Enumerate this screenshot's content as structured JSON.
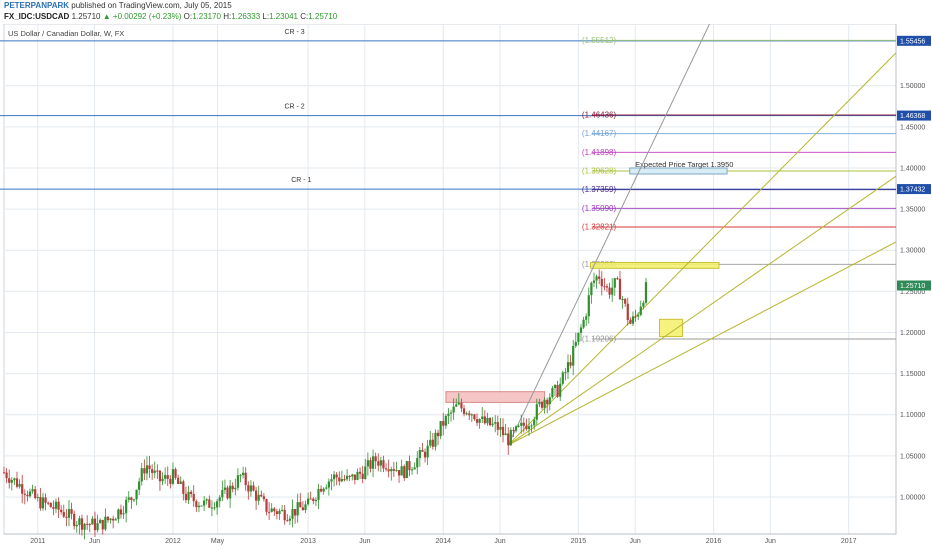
{
  "header": {
    "author": "PETERPANPARK",
    "published": "published on TradingView.com, July 05, 2015",
    "symbol": "FX_IDC:USDCAD",
    "last": "1.25710",
    "change": "+0.00292 (+0.23%)",
    "open": "1.23170",
    "high": "1.26333",
    "low": "1.23041",
    "close": "1.25710",
    "o_label": "O:",
    "h_label": "H:",
    "l_label": "L:",
    "c_label": "C:"
  },
  "colors": {
    "grid": "#e3e9ee",
    "axis_text": "#555555",
    "candle_up": "#2f8f2f",
    "candle_down": "#b83a3a",
    "cr_line": "#3a74c4",
    "fan_line": "#b5b52e",
    "steep_line": "#888888"
  },
  "chart_data": {
    "type": "candlestick",
    "title": "US Dollar / Canadian Dollar, W, FX",
    "ylim": [
      0.955,
      1.575
    ],
    "x_start": 2010.75,
    "x_end": 2017.35,
    "y_ticks": [
      "1.00000",
      "1.05000",
      "1.10000",
      "1.15000",
      "1.20000",
      "1.25000",
      "1.30000",
      "1.35000",
      "1.40000",
      "1.45000",
      "1.50000"
    ],
    "y_tick_values": [
      1.0,
      1.05,
      1.1,
      1.15,
      1.2,
      1.25,
      1.3,
      1.35,
      1.4,
      1.45,
      1.5
    ],
    "x_ticks": [
      {
        "label": "2011",
        "t": 2011.0
      },
      {
        "label": "Jun",
        "t": 2011.42
      },
      {
        "label": "2012",
        "t": 2012.0
      },
      {
        "label": "May",
        "t": 2012.33
      },
      {
        "label": "2013",
        "t": 2013.0
      },
      {
        "label": "Jun",
        "t": 2013.42
      },
      {
        "label": "2014",
        "t": 2014.0
      },
      {
        "label": "Jun",
        "t": 2014.42
      },
      {
        "label": "2015",
        "t": 2015.0
      },
      {
        "label": "Jun",
        "t": 2015.42
      },
      {
        "label": "2016",
        "t": 2016.0
      },
      {
        "label": "Jun",
        "t": 2016.42
      },
      {
        "label": "2017",
        "t": 2017.0
      }
    ],
    "price_path": [
      [
        2010.75,
        1.03
      ],
      [
        2010.9,
        1.01
      ],
      [
        2011.0,
        0.995
      ],
      [
        2011.15,
        0.985
      ],
      [
        2011.3,
        0.97
      ],
      [
        2011.45,
        0.965
      ],
      [
        2011.55,
        0.975
      ],
      [
        2011.7,
        1.0
      ],
      [
        2011.8,
        1.04
      ],
      [
        2011.9,
        1.02
      ],
      [
        2012.0,
        1.025
      ],
      [
        2012.1,
        1.0
      ],
      [
        2012.25,
        0.99
      ],
      [
        2012.4,
        1.005
      ],
      [
        2012.5,
        1.025
      ],
      [
        2012.6,
        1.005
      ],
      [
        2012.7,
        0.985
      ],
      [
        2012.85,
        0.98
      ],
      [
        2013.0,
        0.99
      ],
      [
        2013.1,
        1.015
      ],
      [
        2013.2,
        1.025
      ],
      [
        2013.3,
        1.02
      ],
      [
        2013.4,
        1.03
      ],
      [
        2013.5,
        1.045
      ],
      [
        2013.6,
        1.04
      ],
      [
        2013.7,
        1.03
      ],
      [
        2013.8,
        1.045
      ],
      [
        2013.9,
        1.06
      ],
      [
        2014.0,
        1.09
      ],
      [
        2014.1,
        1.11
      ],
      [
        2014.2,
        1.105
      ],
      [
        2014.3,
        1.09
      ],
      [
        2014.4,
        1.085
      ],
      [
        2014.48,
        1.07
      ],
      [
        2014.55,
        1.08
      ],
      [
        2014.65,
        1.095
      ],
      [
        2014.75,
        1.12
      ],
      [
        2014.85,
        1.13
      ],
      [
        2014.95,
        1.17
      ],
      [
        2015.05,
        1.22
      ],
      [
        2015.1,
        1.26
      ],
      [
        2015.15,
        1.27
      ],
      [
        2015.22,
        1.25
      ],
      [
        2015.28,
        1.26
      ],
      [
        2015.33,
        1.24
      ],
      [
        2015.38,
        1.21
      ],
      [
        2015.43,
        1.22
      ],
      [
        2015.47,
        1.24
      ],
      [
        2015.51,
        1.2571
      ]
    ],
    "price_labels": [
      {
        "text": "1.55456",
        "value": 1.55456,
        "color": "#1f4fa8"
      },
      {
        "text": "1.46368",
        "value": 1.46368,
        "color": "#1f4fa8"
      },
      {
        "text": "1.37432",
        "value": 1.37432,
        "color": "#1f4fa8"
      },
      {
        "text": "1.25710",
        "value": 1.2571,
        "color": "#2e8b57"
      }
    ],
    "horizontal_lines": [
      {
        "label": "CR - 3",
        "value": 1.55456,
        "color": "#3a74c4",
        "label_t": 2012.9
      },
      {
        "label": "CR - 2",
        "value": 1.46368,
        "color": "#3a74c4",
        "label_t": 2012.9
      },
      {
        "label": "CR - 1",
        "value": 1.37432,
        "color": "#3a74c4",
        "label_t": 2012.95
      }
    ],
    "fib_levels": [
      {
        "label": "(1.55512)",
        "value": 1.5551,
        "color": "#9cc47a"
      },
      {
        "label": "(1.46436)",
        "value": 1.46436,
        "color": "#8b1c3c"
      },
      {
        "label": "(1.44167)",
        "value": 1.44167,
        "color": "#6fa3d8"
      },
      {
        "label": "(1.41898)",
        "value": 1.41898,
        "color": "#c03fc0"
      },
      {
        "label": "(1.39628)",
        "value": 1.39628,
        "color": "#a8c23a"
      },
      {
        "label": "(1.37359)",
        "value": 1.37359,
        "color": "#4a2a8a"
      },
      {
        "label": "(1.35090)",
        "value": 1.3509,
        "color": "#9a3ac0"
      },
      {
        "label": "(1.32821)",
        "value": 1.32821,
        "color": "#d93a3a"
      },
      {
        "label": "(1.28283)",
        "value": 1.28283,
        "color": "#999999"
      },
      {
        "label": "(1.19206)",
        "value": 1.19206,
        "color": "#999999"
      }
    ],
    "annotation": {
      "text": "Expected Price Target 1.3950",
      "value": 1.3963
    },
    "trend_lines": [
      {
        "from": [
          2014.48,
          1.063
        ],
        "to": [
          2015.97,
          1.575
        ],
        "color": "#999999"
      },
      {
        "from": [
          2014.48,
          1.063
        ],
        "to": [
          2017.35,
          1.54
        ],
        "color": "#b5b52e"
      },
      {
        "from": [
          2014.48,
          1.063
        ],
        "to": [
          2017.35,
          1.39
        ],
        "color": "#b5b52e"
      },
      {
        "from": [
          2014.48,
          1.063
        ],
        "to": [
          2017.35,
          1.31
        ],
        "color": "#b5b52e"
      }
    ],
    "boxes": [
      {
        "t0": 2014.02,
        "t1": 2014.75,
        "v0": 1.115,
        "v1": 1.128,
        "fill": "#f4bcbc",
        "stroke": "#d88a8a"
      },
      {
        "t0": 2015.09,
        "t1": 2016.04,
        "v0": 1.278,
        "v1": 1.285,
        "fill": "#f3f06a",
        "stroke": "#c9c230"
      },
      {
        "t0": 2015.6,
        "t1": 2015.77,
        "v0": 1.195,
        "v1": 1.216,
        "fill": "#f3f06a",
        "stroke": "#c9c230"
      }
    ]
  }
}
